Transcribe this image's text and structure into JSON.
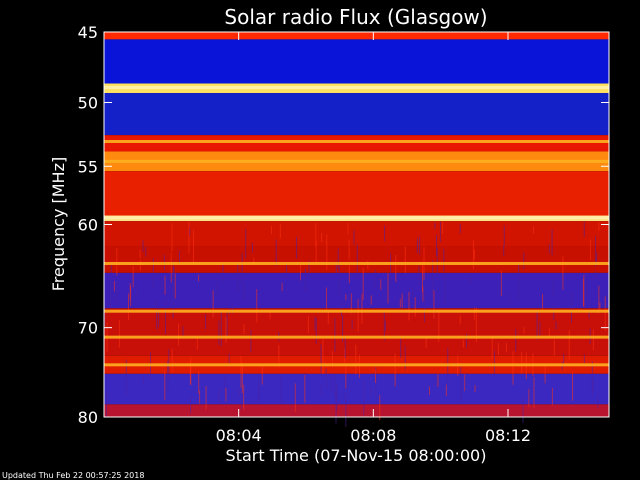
{
  "chart_data": {
    "type": "heatmap",
    "title": "Solar radio Flux (Glasgow)",
    "ylabel": "Frequency [MHz]",
    "xlabel": "Start Time (07-Nov-15 08:00:00)",
    "y_scale": "log",
    "y_range_mhz": [
      45,
      80
    ],
    "y_ticks": [
      {
        "value": 45,
        "label": "45"
      },
      {
        "value": 50,
        "label": "50"
      },
      {
        "value": 55,
        "label": "55"
      },
      {
        "value": 60,
        "label": "60"
      },
      {
        "value": 70,
        "label": "70"
      },
      {
        "value": 80,
        "label": "80"
      }
    ],
    "x_range_minutes": [
      0,
      15
    ],
    "x_ticks": [
      {
        "value": 4,
        "label": "08:04"
      },
      {
        "value": 8,
        "label": "08:08"
      },
      {
        "value": 12,
        "label": "08:12"
      }
    ],
    "grid": false,
    "colormap": "blue-red-yellow",
    "bands": [
      {
        "from": 45.0,
        "to": 45.5,
        "color": "#ff2a00"
      },
      {
        "from": 45.5,
        "to": 48.6,
        "color": "#0a14d8"
      },
      {
        "from": 48.6,
        "to": 49.3,
        "color": "#ffe060"
      },
      {
        "from": 49.3,
        "to": 52.5,
        "color": "#1420c8"
      },
      {
        "from": 52.5,
        "to": 53.8,
        "color": "#e81800"
      },
      {
        "from": 53.8,
        "to": 55.4,
        "color": "#ff8a10"
      },
      {
        "from": 55.4,
        "to": 59.2,
        "color": "#e82000"
      },
      {
        "from": 59.2,
        "to": 59.7,
        "color": "#ffe080"
      },
      {
        "from": 59.7,
        "to": 62.0,
        "color": "#d01400"
      },
      {
        "from": 62.0,
        "to": 64.5,
        "color": "#c81000"
      },
      {
        "from": 64.5,
        "to": 68.0,
        "color": "#3c20b8"
      },
      {
        "from": 68.0,
        "to": 73.0,
        "color": "#c81008"
      },
      {
        "from": 73.0,
        "to": 75.0,
        "color": "#e01c00"
      },
      {
        "from": 75.0,
        "to": 78.5,
        "color": "#3a28c0"
      },
      {
        "from": 78.5,
        "to": 80.0,
        "color": "#b81430"
      }
    ],
    "bright_lines_mhz": [
      48.9,
      53.0,
      54.6,
      59.4,
      63.6,
      68.3,
      71.0,
      74.0
    ]
  },
  "footer": {
    "updated": "Updated Thu Feb 22 00:57:25 2018"
  }
}
